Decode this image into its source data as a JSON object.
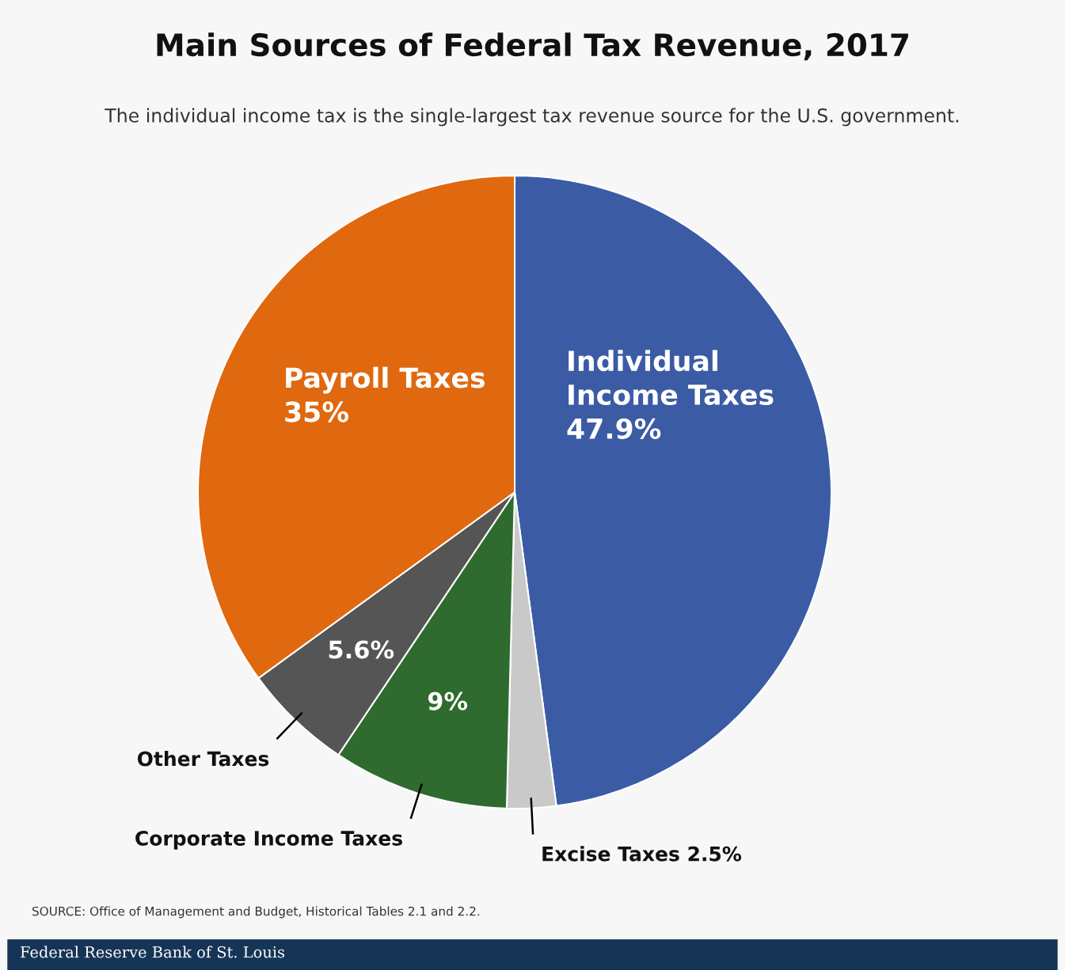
{
  "chart_data": {
    "type": "pie",
    "title": "Main Sources of Federal Tax Revenue, 2017",
    "subtitle": "The individual income tax is the single-largest tax revenue source for the U.S. government.",
    "categories": [
      "Individual Income Taxes",
      "Excise Taxes",
      "Corporate Income Taxes",
      "Other Taxes",
      "Payroll Taxes"
    ],
    "values": [
      47.9,
      2.5,
      9,
      5.6,
      35
    ],
    "value_labels": [
      "47.9%",
      "2.5%",
      "9%",
      "5.6%",
      "35%"
    ],
    "colors": [
      "#3b5ba5",
      "#c9c9c9",
      "#2f6b2f",
      "#555555",
      "#e0680f"
    ],
    "annotations": [
      "SOURCE: Office of Management and Budget, Historical Tables 2.1 and 2.2.",
      "Federal Reserve Bank of St. Louis"
    ]
  }
}
